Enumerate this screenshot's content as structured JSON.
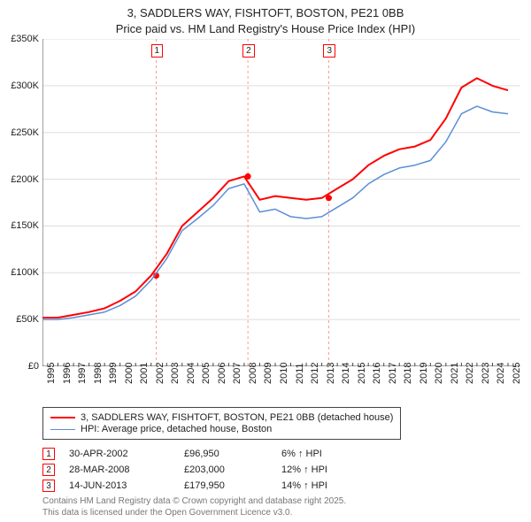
{
  "title_line1": "3, SADDLERS WAY, FISHTOFT, BOSTON, PE21 0BB",
  "title_line2": "Price paid vs. HM Land Registry's House Price Index (HPI)",
  "chart": {
    "type": "line",
    "background_color": "#ffffff",
    "grid_color": "#dddddd",
    "axis_color": "#444444",
    "title_fontsize": 13,
    "label_fontsize": 11,
    "xlim": [
      1995,
      2025.8
    ],
    "ylim": [
      0,
      350000
    ],
    "yticks": [
      0,
      50000,
      100000,
      150000,
      200000,
      250000,
      300000,
      350000
    ],
    "ytick_labels": [
      "£0",
      "£50K",
      "£100K",
      "£150K",
      "£200K",
      "£250K",
      "£300K",
      "£350K"
    ],
    "xticks": [
      1995,
      1996,
      1997,
      1998,
      1999,
      2000,
      2001,
      2002,
      2003,
      2004,
      2005,
      2006,
      2007,
      2008,
      2009,
      2010,
      2011,
      2012,
      2013,
      2014,
      2015,
      2016,
      2017,
      2018,
      2019,
      2020,
      2021,
      2022,
      2023,
      2024,
      2025
    ],
    "series": [
      {
        "name": "3, SADDLERS WAY, FISHTOFT, BOSTON, PE21 0BB (detached house)",
        "color": "#ff0000",
        "line_width": 2,
        "data": [
          [
            1995,
            52000
          ],
          [
            1996,
            52000
          ],
          [
            1997,
            55000
          ],
          [
            1998,
            58000
          ],
          [
            1999,
            62000
          ],
          [
            2000,
            70000
          ],
          [
            2001,
            80000
          ],
          [
            2002,
            96950
          ],
          [
            2003,
            120000
          ],
          [
            2004,
            150000
          ],
          [
            2005,
            165000
          ],
          [
            2006,
            180000
          ],
          [
            2007,
            198000
          ],
          [
            2008,
            203000
          ],
          [
            2009,
            178000
          ],
          [
            2010,
            182000
          ],
          [
            2011,
            180000
          ],
          [
            2012,
            178000
          ],
          [
            2013,
            179950
          ],
          [
            2014,
            190000
          ],
          [
            2015,
            200000
          ],
          [
            2016,
            215000
          ],
          [
            2017,
            225000
          ],
          [
            2018,
            232000
          ],
          [
            2019,
            235000
          ],
          [
            2020,
            242000
          ],
          [
            2021,
            265000
          ],
          [
            2022,
            298000
          ],
          [
            2023,
            308000
          ],
          [
            2024,
            300000
          ],
          [
            2025,
            295000
          ]
        ]
      },
      {
        "name": "HPI: Average price, detached house, Boston",
        "color": "#5b8fd6",
        "line_width": 1.5,
        "data": [
          [
            1995,
            50000
          ],
          [
            1996,
            50000
          ],
          [
            1997,
            52000
          ],
          [
            1998,
            55000
          ],
          [
            1999,
            58000
          ],
          [
            2000,
            65000
          ],
          [
            2001,
            75000
          ],
          [
            2002,
            92000
          ],
          [
            2003,
            115000
          ],
          [
            2004,
            145000
          ],
          [
            2005,
            158000
          ],
          [
            2006,
            172000
          ],
          [
            2007,
            190000
          ],
          [
            2008,
            195000
          ],
          [
            2009,
            165000
          ],
          [
            2010,
            168000
          ],
          [
            2011,
            160000
          ],
          [
            2012,
            158000
          ],
          [
            2013,
            160000
          ],
          [
            2014,
            170000
          ],
          [
            2015,
            180000
          ],
          [
            2016,
            195000
          ],
          [
            2017,
            205000
          ],
          [
            2018,
            212000
          ],
          [
            2019,
            215000
          ],
          [
            2020,
            220000
          ],
          [
            2021,
            240000
          ],
          [
            2022,
            270000
          ],
          [
            2023,
            278000
          ],
          [
            2024,
            272000
          ],
          [
            2025,
            270000
          ]
        ]
      }
    ],
    "markers": [
      {
        "idx": "1",
        "x": 2002.33,
        "y": 96950,
        "line_color": "#ff9999"
      },
      {
        "idx": "2",
        "x": 2008.24,
        "y": 203000,
        "line_color": "#ff9999"
      },
      {
        "idx": "3",
        "x": 2013.45,
        "y": 179950,
        "line_color": "#ff9999"
      }
    ],
    "marker_point_color": "#ff0000",
    "marker_box_border": "#ff0000"
  },
  "events": [
    {
      "idx": "1",
      "date": "30-APR-2002",
      "price": "£96,950",
      "delta": "6% ↑ HPI"
    },
    {
      "idx": "2",
      "date": "28-MAR-2008",
      "price": "£203,000",
      "delta": "12% ↑ HPI"
    },
    {
      "idx": "3",
      "date": "14-JUN-2013",
      "price": "£179,950",
      "delta": "14% ↑ HPI"
    }
  ],
  "footer_line1": "Contains HM Land Registry data © Crown copyright and database right 2025.",
  "footer_line2": "This data is licensed under the Open Government Licence v3.0."
}
